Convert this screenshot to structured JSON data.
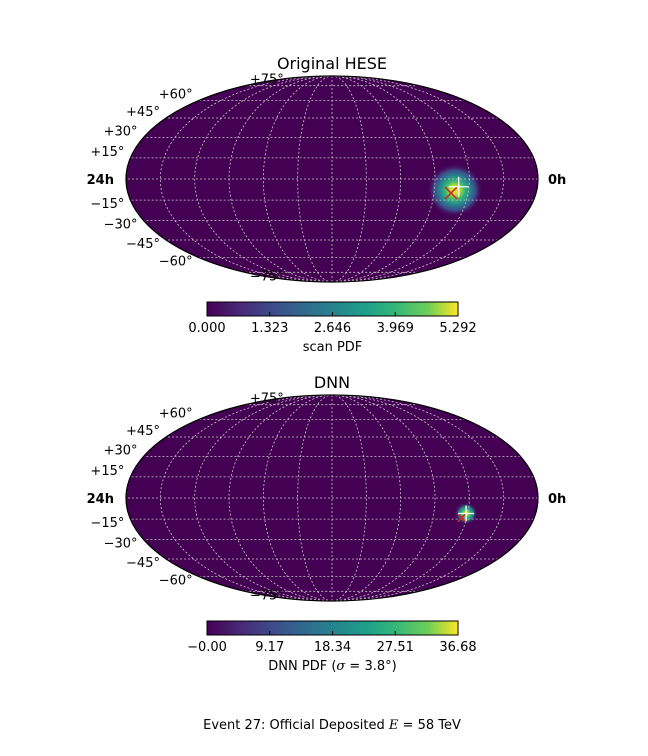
{
  "figure": {
    "caption": "Event 27:  Official Deposited ",
    "caption_var": "E",
    "caption_eq": " = 58 TeV"
  },
  "colors": {
    "map_background": "#440154",
    "grid": "#c8c8c8",
    "outline": "#000000",
    "true_marker": "#ffffff",
    "pred_marker": "#cc2a2a"
  },
  "chart_data": [
    {
      "type": "heatmap",
      "projection": "mollweide",
      "title": "Original HESE",
      "colormap": "viridis",
      "ra_labels": {
        "left": "24h",
        "right": "0h"
      },
      "dec_labels": [
        "+75°",
        "+60°",
        "+45°",
        "+30°",
        "+15°",
        "−15°",
        "−30°",
        "−45°",
        "−60°",
        "−75°"
      ],
      "dec_values": [
        75,
        60,
        45,
        30,
        15,
        -15,
        -30,
        -45,
        -60,
        -75
      ],
      "grid": true,
      "colorbar": {
        "label": "scan PDF",
        "range": [
          0.0,
          5.292
        ],
        "ticks": [
          0.0,
          1.323,
          2.646,
          3.969,
          5.292
        ],
        "tick_labels": [
          "0.000",
          "1.323",
          "2.646",
          "3.969",
          "5.292"
        ]
      },
      "hotspot": {
        "ra_hours": 4.8,
        "dec_deg": -8,
        "peak": 5.292,
        "sigma_deg": 9.0
      },
      "true_direction": {
        "ra_hours": 4.6,
        "dec_deg": -5.5
      },
      "predicted_direction": {
        "ra_hours": 5.0,
        "dec_deg": -10
      }
    },
    {
      "type": "heatmap",
      "projection": "mollweide",
      "title": "DNN",
      "colormap": "viridis",
      "ra_labels": {
        "left": "24h",
        "right": "0h"
      },
      "dec_labels": [
        "+75°",
        "+60°",
        "+45°",
        "+30°",
        "+15°",
        "−15°",
        "−30°",
        "−45°",
        "−60°",
        "−75°"
      ],
      "dec_values": [
        75,
        60,
        45,
        30,
        15,
        -15,
        -30,
        -45,
        -60,
        -75
      ],
      "grid": true,
      "colorbar": {
        "label_text": "DNN PDF (",
        "label_sym": "σ",
        "label_eq": " = 3.8°)",
        "range": [
          -0.0,
          36.68
        ],
        "ticks": [
          -0.0,
          9.17,
          18.34,
          27.51,
          36.68
        ],
        "tick_labels": [
          "−0.00",
          "9.17",
          "18.34",
          "27.51",
          "36.68"
        ]
      },
      "hotspot": {
        "ra_hours": 4.1,
        "dec_deg": -11,
        "peak": 36.68,
        "sigma_deg": 3.8
      },
      "true_direction": {
        "ra_hours": 4.1,
        "dec_deg": -11
      },
      "predicted_direction": {
        "ra_hours": 4.3,
        "dec_deg": -14
      }
    }
  ]
}
